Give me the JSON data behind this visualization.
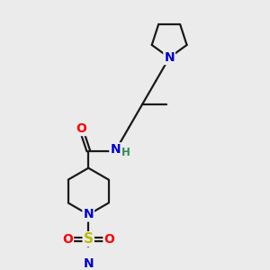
{
  "bg_color": "#ebebeb",
  "atom_colors": {
    "C": "#000000",
    "N": "#0000cc",
    "O": "#ff0000",
    "S": "#bbbb00",
    "H": "#2e8b57"
  },
  "bond_color": "#1a1a1a",
  "bond_width": 1.6,
  "figsize": [
    3.0,
    3.0
  ],
  "dpi": 100,
  "xlim": [
    0,
    10
  ],
  "ylim": [
    0,
    10
  ]
}
